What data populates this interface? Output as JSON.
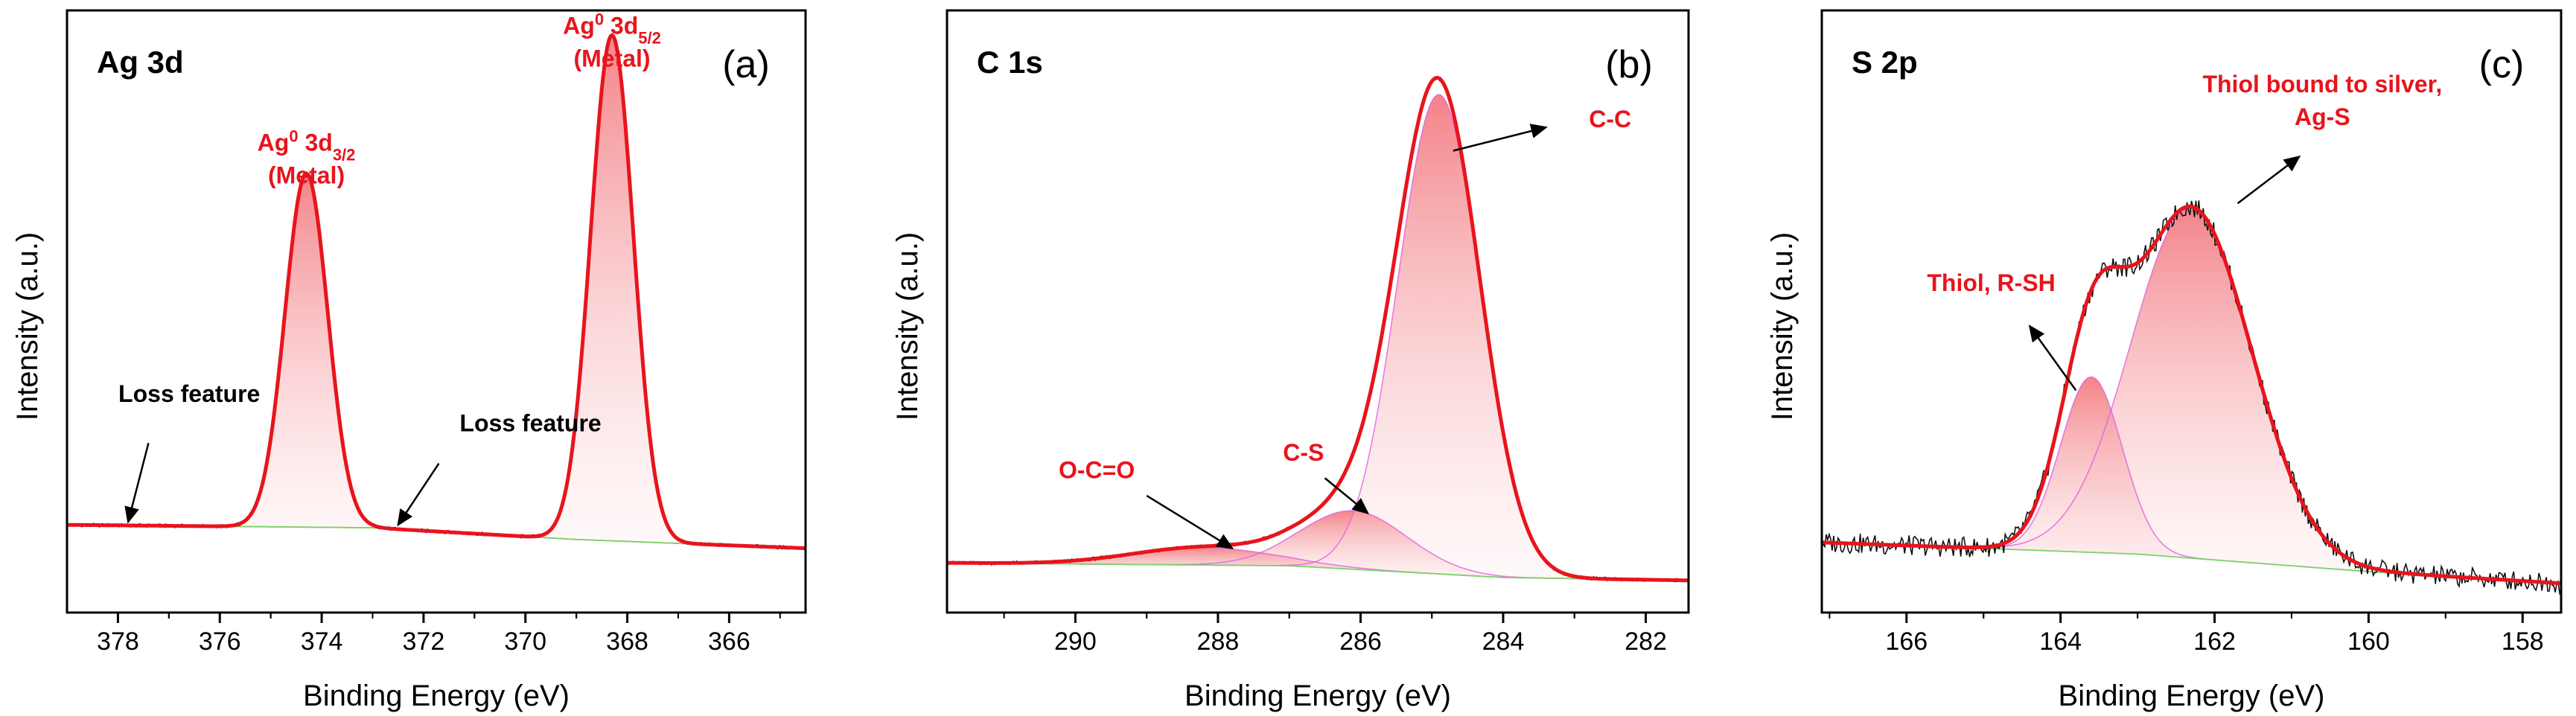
{
  "chart_data": [
    {
      "id": "a",
      "type": "line",
      "panel_label": "(a)",
      "title": "Ag 3d",
      "xlabel": "Binding Energy (eV)",
      "ylabel": "Intensity (a.u.)",
      "xlim": [
        379,
        364.5
      ],
      "ylim": [
        0,
        1.03
      ],
      "x_ticks": [
        378,
        376,
        374,
        372,
        370,
        368,
        366
      ],
      "background": [
        [
          379,
          0.15
        ],
        [
          373,
          0.145
        ],
        [
          369,
          0.125
        ],
        [
          364.5,
          0.11
        ]
      ],
      "peaks": [
        {
          "name": "Ag0 3d3/2 (Metal)",
          "center": 374.3,
          "height": 0.605,
          "width": 0.42,
          "color": "#e8454f"
        },
        {
          "name": "Ag0 3d5/2 (Metal)",
          "center": 368.3,
          "height": 0.865,
          "width": 0.42,
          "color": "#e8454f"
        }
      ],
      "annotations": [
        {
          "text": "Ag",
          "sup": "0",
          "rest": " 3d",
          "sub": "3/2",
          "line2": "(Metal)",
          "color": "#e8141c",
          "x": 374.3,
          "y": 0.79
        },
        {
          "text": "Ag",
          "sup": "0",
          "rest": " 3d",
          "sub": "5/2",
          "line2": "(Metal)",
          "color": "#e8141c",
          "x": 368.3,
          "y": 0.99
        },
        {
          "text": "Loss feature",
          "color": "#000000",
          "x": 376.6,
          "y": 0.36,
          "arrow_from": [
            377.4,
            0.29
          ],
          "arrow_to": [
            377.8,
            0.155
          ]
        },
        {
          "text": "Loss feature",
          "color": "#000000",
          "x": 369.9,
          "y": 0.31,
          "arrow_from": [
            371.7,
            0.255
          ],
          "arrow_to": [
            372.5,
            0.15
          ]
        }
      ]
    },
    {
      "id": "b",
      "type": "line",
      "panel_label": "(b)",
      "title": "C 1s",
      "xlabel": "Binding Energy (eV)",
      "ylabel": "Intensity (a.u.)",
      "xlim": [
        291.8,
        281.4
      ],
      "ylim": [
        0,
        1.03
      ],
      "x_ticks": [
        290,
        288,
        286,
        284,
        282
      ],
      "background": [
        [
          291.8,
          0.085
        ],
        [
          287,
          0.08
        ],
        [
          284,
          0.06
        ],
        [
          281.4,
          0.055
        ]
      ],
      "peaks": [
        {
          "name": "O-C=O",
          "center": 288.2,
          "height": 0.03,
          "width": 1.0,
          "color": "#e060e0"
        },
        {
          "name": "C-S",
          "center": 286.1,
          "height": 0.1,
          "width": 0.75,
          "color": "#e060e0"
        },
        {
          "name": "C-C",
          "center": 284.9,
          "height": 0.82,
          "width": 0.58,
          "color": "#e060e0"
        }
      ],
      "annotations": [
        {
          "text": "C-C",
          "color": "#e8141c",
          "x": 282.5,
          "y": 0.83,
          "arrow_from": [
            284.7,
            0.79
          ],
          "arrow_to": [
            283.4,
            0.83
          ]
        },
        {
          "text": "C-S",
          "color": "#e8141c",
          "x": 286.8,
          "y": 0.26,
          "arrow_from": [
            286.5,
            0.23
          ],
          "arrow_to": [
            285.9,
            0.17
          ]
        },
        {
          "text": "O-C=O",
          "color": "#e8141c",
          "x": 289.7,
          "y": 0.23,
          "arrow_from": [
            289.0,
            0.2
          ],
          "arrow_to": [
            287.8,
            0.11
          ]
        }
      ]
    },
    {
      "id": "c",
      "type": "line",
      "panel_label": "(c)",
      "title": "S 2p",
      "xlabel": "Binding Energy (eV)",
      "ylabel": "Intensity (a.u.)",
      "xlim": [
        167.1,
        157.5
      ],
      "ylim": [
        0,
        1.03
      ],
      "x_ticks": [
        166,
        164,
        162,
        160,
        158
      ],
      "background": [
        [
          167.1,
          0.12
        ],
        [
          163,
          0.1
        ],
        [
          160,
          0.07
        ],
        [
          157.5,
          0.05
        ]
      ],
      "peaks": [
        {
          "name": "Thiol, R-SH",
          "center": 163.6,
          "height": 0.3,
          "width": 0.4,
          "color": "#e060e0"
        },
        {
          "name": "Thiol bound to silver, Ag-S",
          "center": 162.3,
          "height": 0.6,
          "width": 0.78,
          "color": "#e060e0"
        }
      ],
      "annotations": [
        {
          "text": "Thiol bound to silver,",
          "line2": "Ag-S",
          "color": "#e8141c",
          "x": 160.6,
          "y": 0.89,
          "arrow_from": [
            161.7,
            0.7
          ],
          "arrow_to": [
            160.9,
            0.78
          ]
        },
        {
          "text": "Thiol, R-SH",
          "color": "#e8141c",
          "x": 164.9,
          "y": 0.55,
          "arrow_from": [
            163.8,
            0.38
          ],
          "arrow_to": [
            164.4,
            0.49
          ]
        }
      ]
    }
  ]
}
